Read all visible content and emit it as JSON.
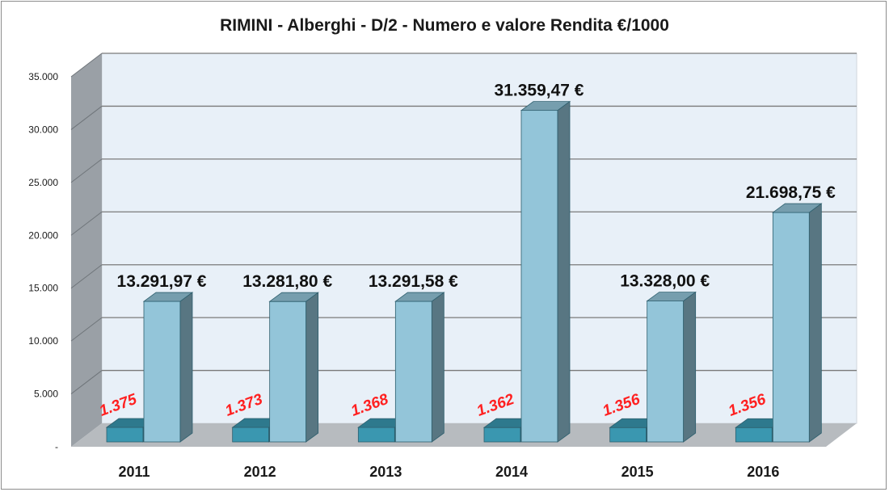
{
  "chart_data": {
    "type": "bar",
    "title": "RIMINI - Alberghi - D/2 - Numero e valore Rendita €/1000",
    "categories": [
      "2011",
      "2012",
      "2013",
      "2014",
      "2015",
      "2016"
    ],
    "series": [
      {
        "values": [
          1375,
          1373,
          1368,
          1362,
          1356,
          1356
        ],
        "data_labels": [
          "1.375",
          "1.373",
          "1.368",
          "1.362",
          "1.356",
          "1.356"
        ],
        "color": "#3a97b0",
        "label_color": "#ff2020"
      },
      {
        "values": [
          13291.97,
          13281.8,
          13291.58,
          31359.47,
          13328.0,
          21698.75
        ],
        "data_labels": [
          "13.291,97 €",
          "13.281,80 €",
          "13.291,58 €",
          "31.359,47 €",
          "13.328,00 €",
          "21.698,75 €"
        ],
        "color": "#93c5d9",
        "label_color": "#111111"
      }
    ],
    "ylim": [
      0,
      35000
    ],
    "yticks": [
      0,
      5000,
      10000,
      15000,
      20000,
      25000,
      30000,
      35000
    ],
    "ytick_labels": [
      "-",
      "5.000",
      "10.000",
      "15.000",
      "20.000",
      "25.000",
      "30.000",
      "35.000"
    ],
    "xlabel": "",
    "ylabel": "",
    "grid": true,
    "legend": "none",
    "style": "3d-column",
    "colors": {
      "back_wall": "#e8f0f8",
      "side_wall": "#9aa0a6",
      "floor": "#b7bbbf",
      "gridline": "#7a7a7a"
    }
  }
}
